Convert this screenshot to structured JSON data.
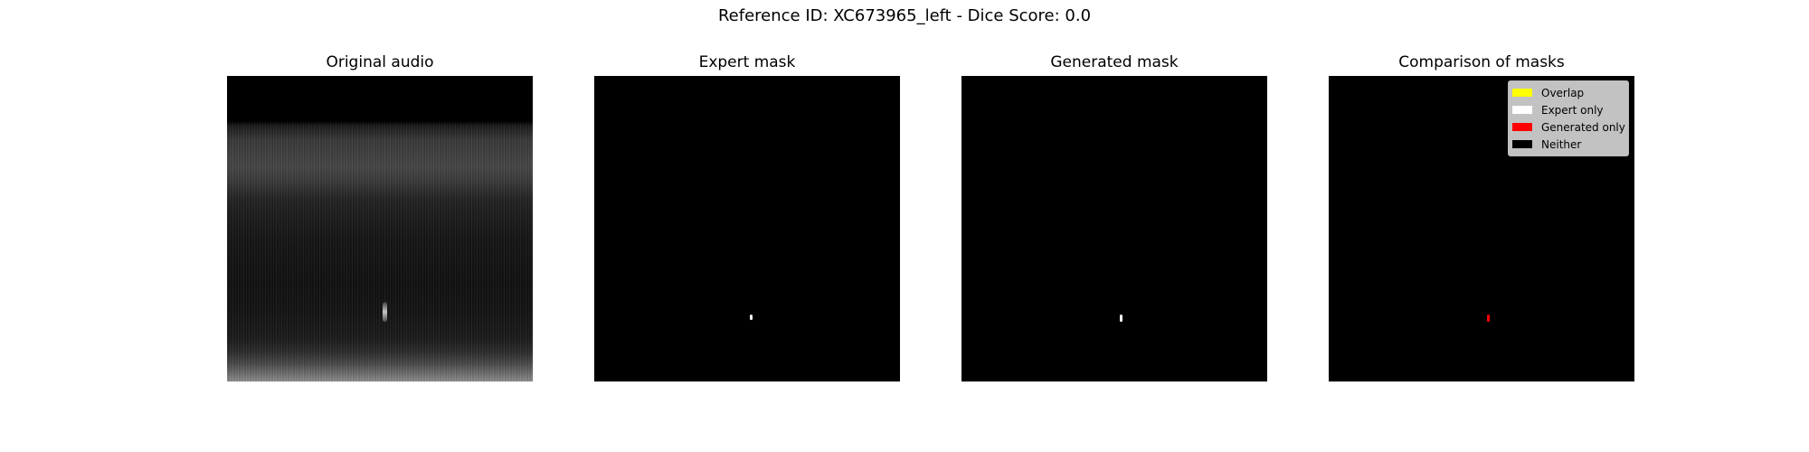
{
  "figure": {
    "suptitle": "Reference ID: XC673965_left - Dice Score: 0.0"
  },
  "panels": [
    {
      "title": "Original audio"
    },
    {
      "title": "Expert mask"
    },
    {
      "title": "Generated mask"
    },
    {
      "title": "Comparison of masks"
    }
  ],
  "legend": {
    "items": [
      {
        "label": "Overlap",
        "color": "#ffff00"
      },
      {
        "label": "Expert only",
        "color": "#ffffff"
      },
      {
        "label": "Generated only",
        "color": "#ff0000"
      },
      {
        "label": "Neither",
        "color": "#000000"
      }
    ]
  },
  "colors": {
    "background": "#ffffff",
    "panel_background": "#000000",
    "expert_mask": "#ffffff",
    "generated_mask": "#ffffff",
    "comparison_generated_only": "#ff0000"
  }
}
